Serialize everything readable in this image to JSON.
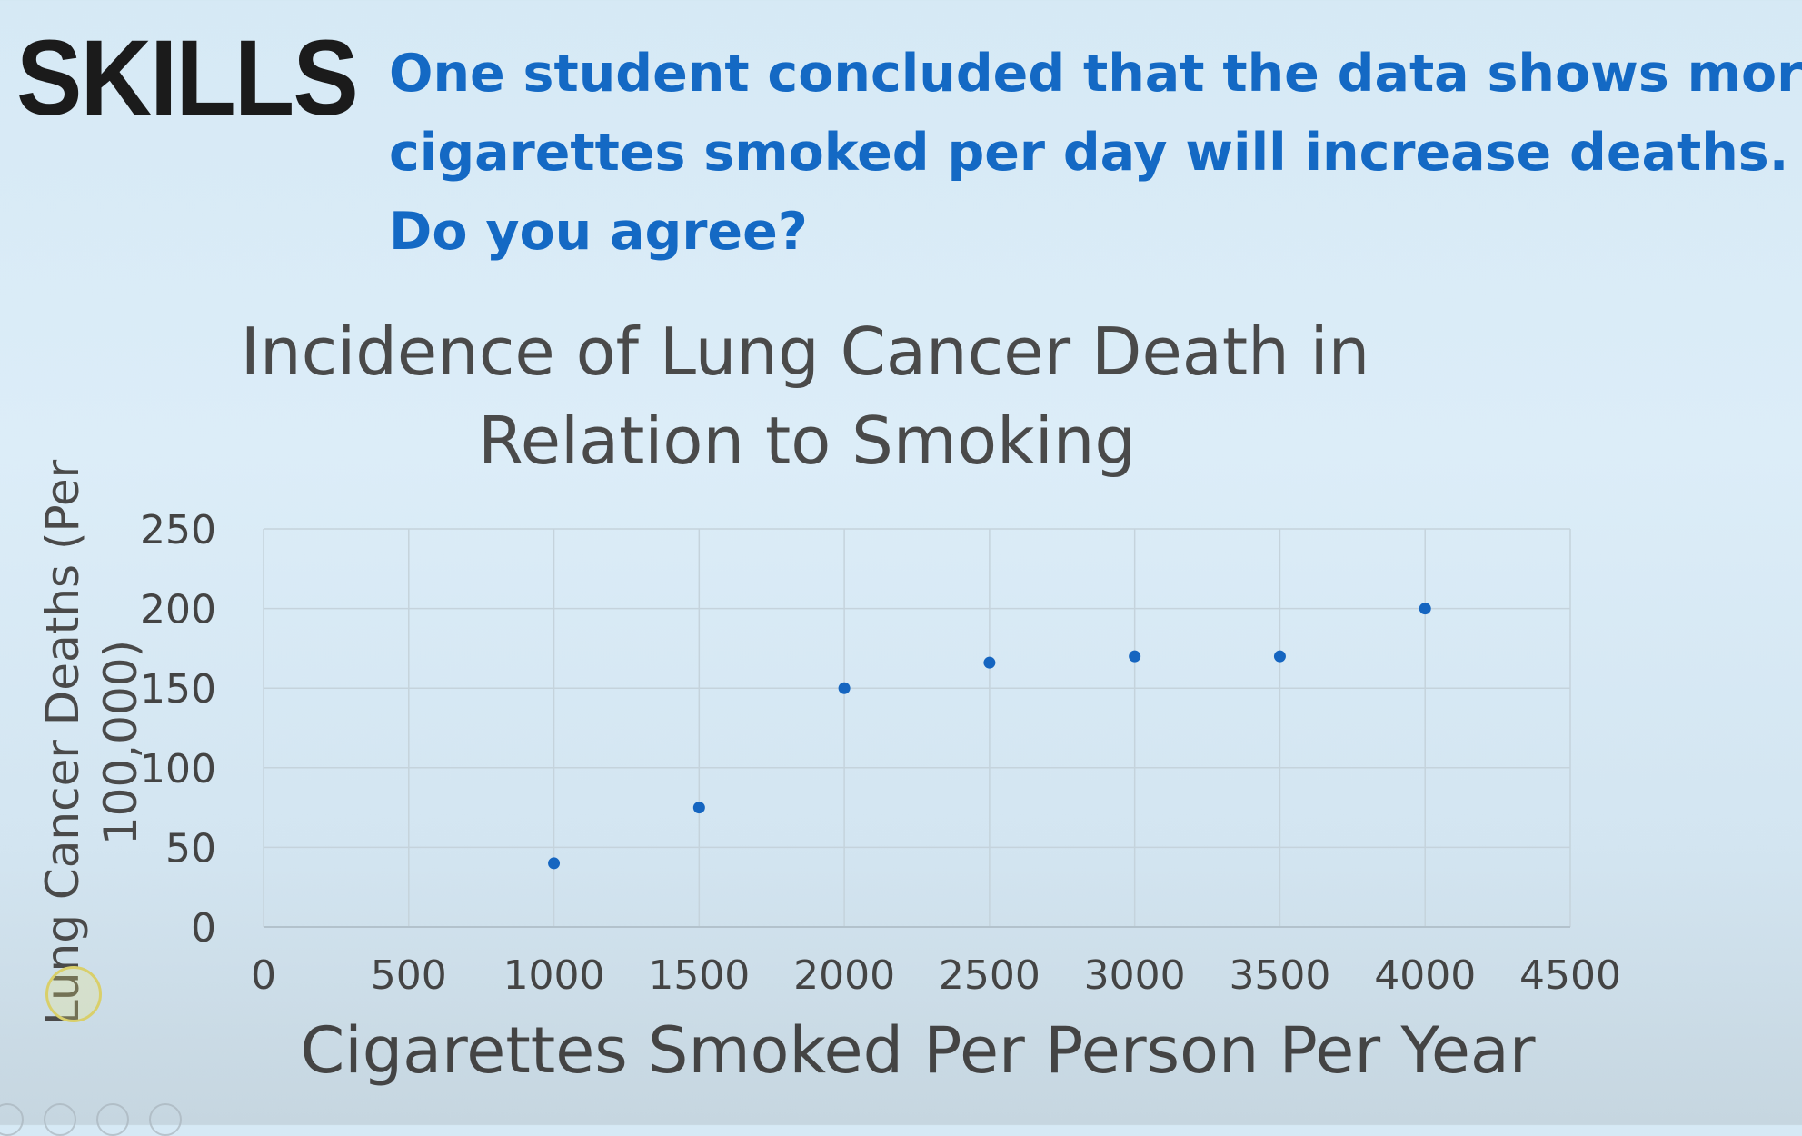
{
  "header": {
    "label": "SKILLS",
    "question_lines": [
      "One student concluded that the data shows more",
      "cigarettes smoked per day will increase deaths.",
      "Do you agree?"
    ]
  },
  "chart_data": {
    "type": "scatter",
    "title_lines": [
      "Incidence of Lung Cancer Death in",
      "Relation to Smoking"
    ],
    "xlabel": "Cigarettes Smoked Per Person Per Year",
    "ylabel_lines": [
      "Lung Cancer Deaths (Per",
      "100,000)"
    ],
    "xlim": [
      0,
      4500
    ],
    "ylim": [
      0,
      250
    ],
    "x_ticks": [
      "0",
      "500",
      "1000",
      "1500",
      "2000",
      "2500",
      "3000",
      "3500",
      "4000",
      "4500"
    ],
    "y_ticks": [
      "0",
      "50",
      "100",
      "150",
      "200",
      "250"
    ],
    "grid": true,
    "series": [
      {
        "points": [
          {
            "x": 1000,
            "y": 40
          },
          {
            "x": 1500,
            "y": 75
          },
          {
            "x": 2000,
            "y": 150
          },
          {
            "x": 2500,
            "y": 166
          },
          {
            "x": 3000,
            "y": 170
          },
          {
            "x": 3500,
            "y": 170
          },
          {
            "x": 4000,
            "y": 200
          }
        ],
        "color": "#1565c0"
      }
    ]
  }
}
